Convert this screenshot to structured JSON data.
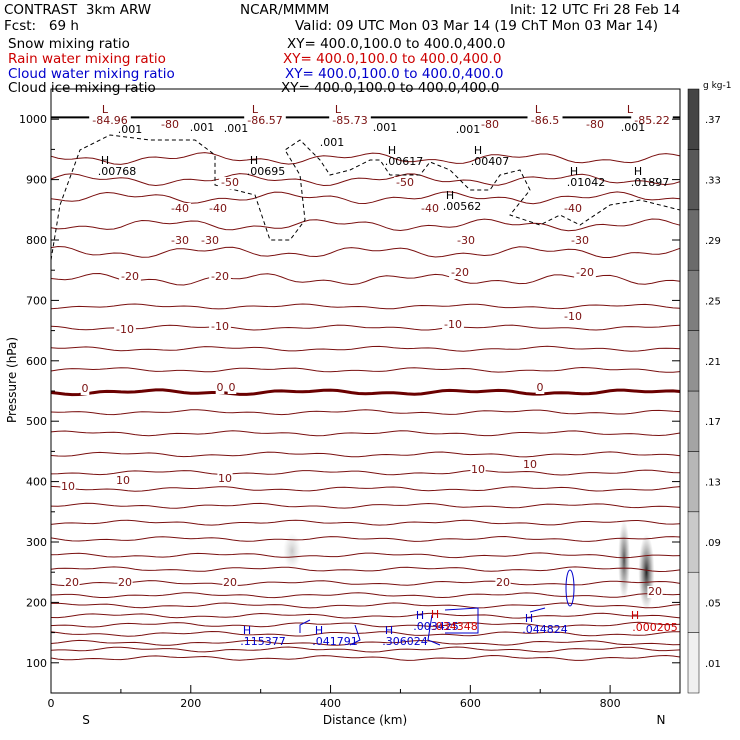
{
  "header": {
    "title": "CONTRAST  3km ARW",
    "center": "NCAR/MMMM",
    "init": "Init: 12 UTC Fri 28 Feb 14",
    "fcst_label": "Fcst:   69 h",
    "valid": "Valid: 09 UTC Mon 03 Mar 14 (19 ChT Mon 03 Mar 14)",
    "fields": [
      {
        "name": "Snow mixing ratio",
        "xy": "XY= 400.0,100.0 to 400.0,400.0",
        "color": "#000000"
      },
      {
        "name": "Rain water mixing ratio",
        "xy": "XY= 400.0,100.0 to 400.0,400.0",
        "color": "#cc0000"
      },
      {
        "name": "Cloud water mixing ratio",
        "xy": "XY= 400.0,100.0 to 400.0,400.0",
        "color": "#0000cc"
      },
      {
        "name": "Cloud ice mixing ratio",
        "xy": "XY= 400.0,100.0 to 400.0,400.0",
        "color": "#000000"
      }
    ]
  },
  "chart_data": {
    "type": "cross-section",
    "xlabel": "Distance (km)",
    "ylabel": "Pressure (hPa)",
    "xlim": [
      0,
      900
    ],
    "ylim": [
      1050,
      50
    ],
    "x_ticks": [
      0,
      200,
      400,
      600,
      800
    ],
    "y_ticks": [
      100,
      200,
      300,
      400,
      500,
      600,
      700,
      800,
      900,
      1000
    ],
    "left_end": "S",
    "right_end": "N",
    "colorbar": {
      "unit": "g kg-1",
      "ticks": [
        ".01",
        ".05",
        ".09",
        ".13",
        ".17",
        ".21",
        ".25",
        ".29",
        ".33",
        ".37"
      ]
    },
    "temperature_labels": [
      "-84.96",
      "-80",
      "-86.57",
      "-85.73",
      "-80",
      "-86.5",
      "-80",
      "-85.22",
      "-50",
      "-50",
      "-40",
      "-40",
      "-40",
      "-40",
      "-30",
      "-30",
      "-30",
      "-30",
      "-20",
      "-20",
      "-20",
      "-20",
      "-10",
      "-10",
      "-10",
      "-10",
      "0",
      "0",
      "0",
      "0",
      "10",
      "10",
      "10",
      "10",
      "10",
      "20",
      "20",
      "20",
      "20",
      "20"
    ],
    "ice_maxima": [
      ".00768",
      ".00695",
      ".00617",
      ".00407",
      ".00562",
      ".01042",
      ".01897"
    ],
    "ice_contour_labels": [
      ".001",
      ".001",
      ".001",
      ".001",
      ".001",
      ".001",
      ".001"
    ],
    "cloud_water_maxima": [
      ".115377",
      ".041791",
      ".306024",
      ".003425",
      ".044824"
    ],
    "rain_maxima": [
      ".034348",
      ".000205"
    ],
    "low_marker": "L",
    "high_marker": "H"
  }
}
